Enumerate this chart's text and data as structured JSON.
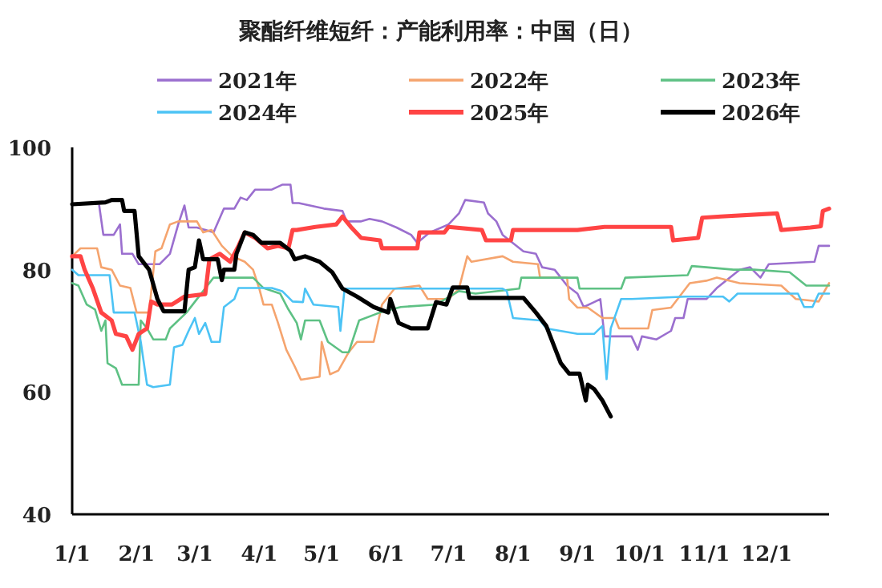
{
  "chart_data": {
    "type": "line",
    "title": "聚酯纤维短纤：产能利用率：中国（日）",
    "legend": "top",
    "grid": false,
    "xlim": [
      "--01-01",
      "--12-31"
    ],
    "ylim": [
      40,
      100
    ],
    "yticks": [
      40,
      60,
      80,
      100
    ],
    "xticks": [
      {
        "value": "--01-01",
        "label": "1/1"
      },
      {
        "value": "--02-01",
        "label": "2/1"
      },
      {
        "value": "--03-01",
        "label": "3/1"
      },
      {
        "value": "--04-01",
        "label": "4/1"
      },
      {
        "value": "--05-01",
        "label": "5/1"
      },
      {
        "value": "--06-01",
        "label": "6/1"
      },
      {
        "value": "--07-01",
        "label": "7/1"
      },
      {
        "value": "--08-01",
        "label": "8/1"
      },
      {
        "value": "--09-01",
        "label": "9/1"
      },
      {
        "value": "--10-01",
        "label": "10/1"
      },
      {
        "value": "--11-01",
        "label": "11/1"
      },
      {
        "value": "--12-01",
        "label": "12/1"
      }
    ],
    "series": [
      {
        "name": "2021年",
        "color": "#9b6fcf",
        "x": [
          "--01-14",
          "--01-16",
          "--01-21",
          "--01-24",
          "--01-25",
          "--01-30",
          "--02-02",
          "--02-12",
          "--02-17",
          "--02-21",
          "--02-24",
          "--02-26",
          "--03-02",
          "--03-10",
          "--03-15",
          "--03-20",
          "--03-23",
          "--03-26",
          "--03-30",
          "--04-07",
          "--04-12",
          "--04-16",
          "--04-17",
          "--04-20",
          "--05-02",
          "--05-11",
          "--05-13",
          "--05-20",
          "--05-24",
          "--05-30",
          "--06-06",
          "--06-13",
          "--06-16",
          "--06-22",
          "--07-01",
          "--07-06",
          "--07-09",
          "--07-18",
          "--07-20",
          "--07-24",
          "--07-27",
          "--08-06",
          "--08-12",
          "--08-15",
          "--08-21",
          "--08-27",
          "--09-01",
          "--09-04",
          "--09-09",
          "--09-12",
          "--09-14",
          "--09-27",
          "--09-30",
          "--10-02",
          "--10-09",
          "--10-16",
          "--10-18",
          "--10-22",
          "--10-24",
          "--11-02",
          "--11-07",
          "--11-18",
          "--11-23",
          "--11-28",
          "--12-02",
          "--12-24",
          "--12-26",
          "--12-31"
        ],
        "values": [
          90.5,
          85.7,
          85.7,
          87.4,
          82.6,
          82.6,
          80.9,
          80.9,
          82.6,
          87.4,
          90.5,
          86.9,
          86.9,
          86.1,
          90,
          90,
          91.8,
          91.4,
          93.1,
          93.1,
          93.9,
          93.9,
          90.9,
          90.9,
          90,
          89.6,
          87.9,
          87.9,
          88.3,
          87.9,
          86.9,
          85.7,
          84.4,
          86.1,
          87.4,
          89.2,
          91.4,
          91,
          89.2,
          87.9,
          85.7,
          83,
          82.6,
          80.4,
          80,
          77.4,
          76.1,
          73.9,
          74.7,
          75.2,
          69.1,
          69.1,
          66.9,
          69.1,
          68.6,
          70,
          72.1,
          72.1,
          75.2,
          75.2,
          77,
          80,
          80.4,
          78.7,
          80.9,
          81.3,
          83.9,
          83.9
        ]
      },
      {
        "name": "2022年",
        "color": "#f5a46e",
        "x": [
          "--01-01",
          "--01-05",
          "--01-13",
          "--01-15",
          "--01-20",
          "--01-24",
          "--01-29",
          "--02-01",
          "--02-07",
          "--02-10",
          "--02-13",
          "--02-17",
          "--02-21",
          "--03-02",
          "--03-05",
          "--03-09",
          "--03-14",
          "--03-19",
          "--03-25",
          "--03-29",
          "--04-01",
          "--04-03",
          "--04-07",
          "--04-10",
          "--04-14",
          "--04-18",
          "--04-21",
          "--04-30",
          "--05-01",
          "--05-05",
          "--05-09",
          "--05-14",
          "--05-18",
          "--05-26",
          "--05-30",
          "--06-05",
          "--06-17",
          "--06-21",
          "--07-01",
          "--07-06",
          "--07-10",
          "--07-12",
          "--07-27",
          "--08-01",
          "--08-13",
          "--08-14",
          "--08-27",
          "--08-28",
          "--09-01",
          "--09-06",
          "--09-13",
          "--09-19",
          "--09-21",
          "--10-05",
          "--10-07",
          "--10-16",
          "--10-25",
          "--11-02",
          "--11-07",
          "--11-18",
          "--12-08",
          "--12-15",
          "--12-26",
          "--12-31"
        ],
        "values": [
          82.2,
          83.5,
          83.5,
          80.4,
          80,
          77.4,
          77,
          73,
          73,
          83,
          83.5,
          87.4,
          87.9,
          87.9,
          86.1,
          86.5,
          83.9,
          82.2,
          81.3,
          80,
          76.9,
          74.3,
          74.3,
          71.3,
          66.9,
          64.2,
          62,
          62.5,
          68.2,
          62.9,
          63.5,
          66.5,
          68.2,
          68.2,
          74.3,
          76.9,
          77.4,
          75.2,
          75.2,
          76.9,
          82.2,
          81.3,
          82.2,
          81.3,
          80.9,
          78.7,
          78.7,
          75.2,
          73.8,
          73.8,
          72.1,
          72.1,
          70.4,
          70.4,
          73.4,
          73.8,
          77.8,
          78.2,
          78.7,
          77.8,
          77.4,
          75.2,
          74.8,
          77.8
        ]
      },
      {
        "name": "2023年",
        "color": "#5ec184",
        "x": [
          "--01-01",
          "--01-04",
          "--01-08",
          "--01-12",
          "--01-15",
          "--01-17",
          "--01-18",
          "--01-22",
          "--01-25",
          "--02-02",
          "--02-03",
          "--02-06",
          "--02-09",
          "--02-15",
          "--02-17",
          "--02-25",
          "--03-05",
          "--03-10",
          "--03-29",
          "--04-03",
          "--04-11",
          "--04-15",
          "--04-19",
          "--04-21",
          "--04-23",
          "--04-30",
          "--05-04",
          "--05-11",
          "--05-14",
          "--05-19",
          "--05-29",
          "--06-08",
          "--06-25",
          "--07-06",
          "--07-14",
          "--08-04",
          "--08-05",
          "--09-01",
          "--09-02",
          "--09-22",
          "--09-24",
          "--10-24",
          "--10-26",
          "--11-02",
          "--11-15",
          "--11-25",
          "--12-12",
          "--12-20",
          "--12-31"
        ],
        "values": [
          77.8,
          77.4,
          74.3,
          73.5,
          70,
          71.7,
          64.7,
          63.9,
          61.2,
          61.2,
          71.7,
          70.4,
          68.6,
          68.6,
          70.4,
          73,
          76.5,
          78.7,
          78.7,
          77,
          76.1,
          73.5,
          71.3,
          68.6,
          71.7,
          71.7,
          68.2,
          66.5,
          66.5,
          71.7,
          73,
          73.9,
          74.3,
          76.5,
          76.1,
          76.9,
          78.7,
          78.7,
          76.9,
          76.9,
          78.7,
          79.1,
          80.6,
          80.4,
          80,
          80,
          79.6,
          77.4,
          77.4
        ]
      },
      {
        "name": "2024年",
        "color": "#4cc3f5",
        "x": [
          "--01-01",
          "--01-04",
          "--01-19",
          "--01-21",
          "--01-31",
          "--02-03",
          "--02-06",
          "--02-09",
          "--02-17",
          "--02-19",
          "--02-23",
          "--02-26",
          "--03-01",
          "--03-03",
          "--03-06",
          "--03-09",
          "--03-13",
          "--03-15",
          "--03-20",
          "--03-22",
          "--04-07",
          "--04-12",
          "--04-17",
          "--04-22",
          "--04-23",
          "--04-27",
          "--05-09",
          "--05-10",
          "--05-12",
          "--05-24",
          "--07-01",
          "--07-27",
          "--07-29",
          "--08-01",
          "--08-14",
          "--08-17",
          "--09-01",
          "--09-09",
          "--09-13",
          "--09-15",
          "--09-17",
          "--09-22",
          "--09-27",
          "--10-23",
          "--11-10",
          "--11-13",
          "--11-17",
          "--12-16",
          "--12-19",
          "--12-23",
          "--12-26",
          "--12-31"
        ],
        "values": [
          80,
          79.1,
          79.1,
          73,
          73,
          68.2,
          61.2,
          60.8,
          61.2,
          67.3,
          67.7,
          70,
          72.1,
          69.5,
          71.3,
          68.2,
          68.2,
          73.9,
          75.2,
          77,
          77,
          76.5,
          74.8,
          74.7,
          76.9,
          74.3,
          73.9,
          70,
          76.9,
          76.9,
          76.9,
          76.9,
          76.5,
          72.1,
          71.7,
          70.4,
          69.5,
          69.5,
          70.8,
          62.1,
          70.4,
          75.2,
          75.2,
          75.6,
          75.6,
          74.8,
          76.1,
          76.1,
          73.9,
          73.9,
          76.1,
          76.1
        ]
      },
      {
        "name": "2025年",
        "color": "#ff4444",
        "x": [
          "--01-01",
          "--01-05",
          "--01-07",
          "--01-11",
          "--01-15",
          "--01-20",
          "--01-22",
          "--01-27",
          "--01-30",
          "--02-02",
          "--02-06",
          "--02-08",
          "--02-11",
          "--02-18",
          "--02-24",
          "--03-06",
          "--03-08",
          "--03-13",
          "--03-18",
          "--03-22",
          "--03-25",
          "--03-30",
          "--04-05",
          "--04-10",
          "--04-15",
          "--04-17",
          "--04-19",
          "--04-28",
          "--05-08",
          "--05-11",
          "--05-15",
          "--05-20",
          "--05-29",
          "--05-30",
          "--06-16",
          "--06-17",
          "--06-29",
          "--07-01",
          "--07-17",
          "--07-19",
          "--07-31",
          "--08-01",
          "--09-01",
          "--09-14",
          "--10-16",
          "--10-17",
          "--10-29",
          "--10-31",
          "--11-09",
          "--12-06",
          "--12-08",
          "--12-22",
          "--12-27",
          "--12-28",
          "--12-31"
        ],
        "values": [
          82.2,
          82.2,
          80,
          76.9,
          73,
          71.7,
          69.5,
          69.1,
          66.9,
          69.5,
          70.4,
          74.8,
          74.3,
          74.3,
          75.6,
          76,
          81.7,
          82.6,
          81.3,
          83.9,
          86.1,
          85.2,
          83.5,
          83.9,
          83.5,
          86.5,
          86.5,
          87,
          87.4,
          88.7,
          87,
          85.2,
          84.8,
          83.5,
          83.5,
          86.1,
          86.1,
          87,
          86.5,
          84.8,
          84.8,
          86.5,
          86.5,
          87,
          87,
          84.8,
          85.2,
          88.5,
          88.7,
          89.2,
          86.5,
          86.9,
          87.1,
          89.6,
          90
        ]
      },
      {
        "name": "2026年",
        "color": "#000000",
        "x": [
          "--01-01",
          "--01-17",
          "--01-20",
          "--01-25",
          "--01-26",
          "--01-31",
          "--02-02",
          "--02-07",
          "--02-11",
          "--02-14",
          "--02-24",
          "--02-26",
          "--03-01",
          "--03-03",
          "--03-05",
          "--03-12",
          "--03-14",
          "--03-15",
          "--03-20",
          "--03-21",
          "--03-25",
          "--03-29",
          "--04-02",
          "--04-11",
          "--04-16",
          "--04-18",
          "--04-23",
          "--04-30",
          "--05-06",
          "--05-11",
          "--05-18",
          "--05-26",
          "--06-02",
          "--06-03",
          "--06-07",
          "--06-13",
          "--06-21",
          "--06-25",
          "--06-30",
          "--07-03",
          "--07-10",
          "--07-11",
          "--08-06",
          "--08-12",
          "--08-17",
          "--08-21",
          "--08-24",
          "--08-28",
          "--09-02",
          "--09-05",
          "--09-06",
          "--09-09",
          "--09-13",
          "--09-17"
        ],
        "values": [
          90.7,
          91,
          91.4,
          91.4,
          89.6,
          89.6,
          82.2,
          80,
          75.2,
          73.2,
          73.2,
          80,
          80.4,
          84.8,
          81.7,
          81.7,
          78.3,
          80,
          80,
          82.6,
          86.1,
          85.7,
          84.4,
          84.4,
          83.1,
          81.7,
          82.2,
          81.3,
          79.6,
          76.9,
          75.6,
          73.9,
          73,
          75.2,
          71.3,
          70.4,
          70.4,
          74.7,
          74.3,
          77.1,
          77.1,
          75.4,
          75.4,
          73,
          70.8,
          67.3,
          64.7,
          63,
          63,
          58.6,
          61.2,
          60.5,
          58.6,
          56
        ]
      }
    ]
  }
}
